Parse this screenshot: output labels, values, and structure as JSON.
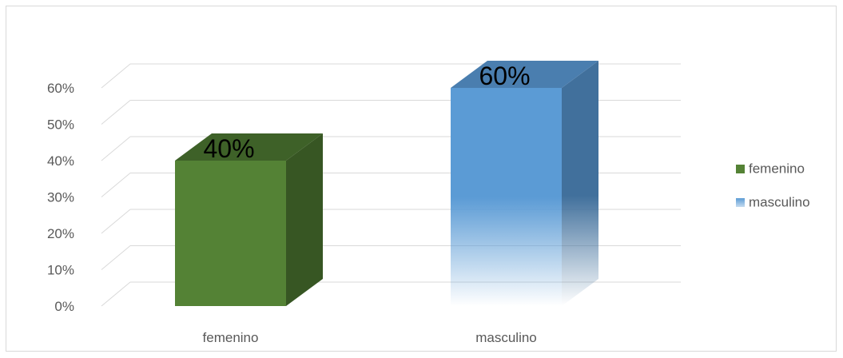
{
  "chart_data": {
    "type": "bar",
    "categories": [
      "femenino",
      "masculino"
    ],
    "values": [
      40,
      60
    ],
    "value_labels": [
      "40%",
      "60%"
    ],
    "yticks": [
      "0%",
      "10%",
      "20%",
      "30%",
      "40%",
      "50%",
      "60%"
    ],
    "ylim": [
      0,
      60
    ],
    "grid": true,
    "legend": {
      "position": "right",
      "entries": [
        "femenino",
        "masculino"
      ]
    },
    "title": "",
    "xlabel": "",
    "ylabel": "",
    "colors": {
      "femenino_front": "#548235",
      "femenino_side": "#375623",
      "femenino_top": "#3e6128",
      "masculino_front": "#5b9bd5",
      "masculino_side": "#41709c",
      "masculino_top": "#4a7eaf",
      "grid": "#d9d9d9",
      "frame": "#d9d9d9",
      "text": "#595959",
      "label": "#000000"
    }
  }
}
